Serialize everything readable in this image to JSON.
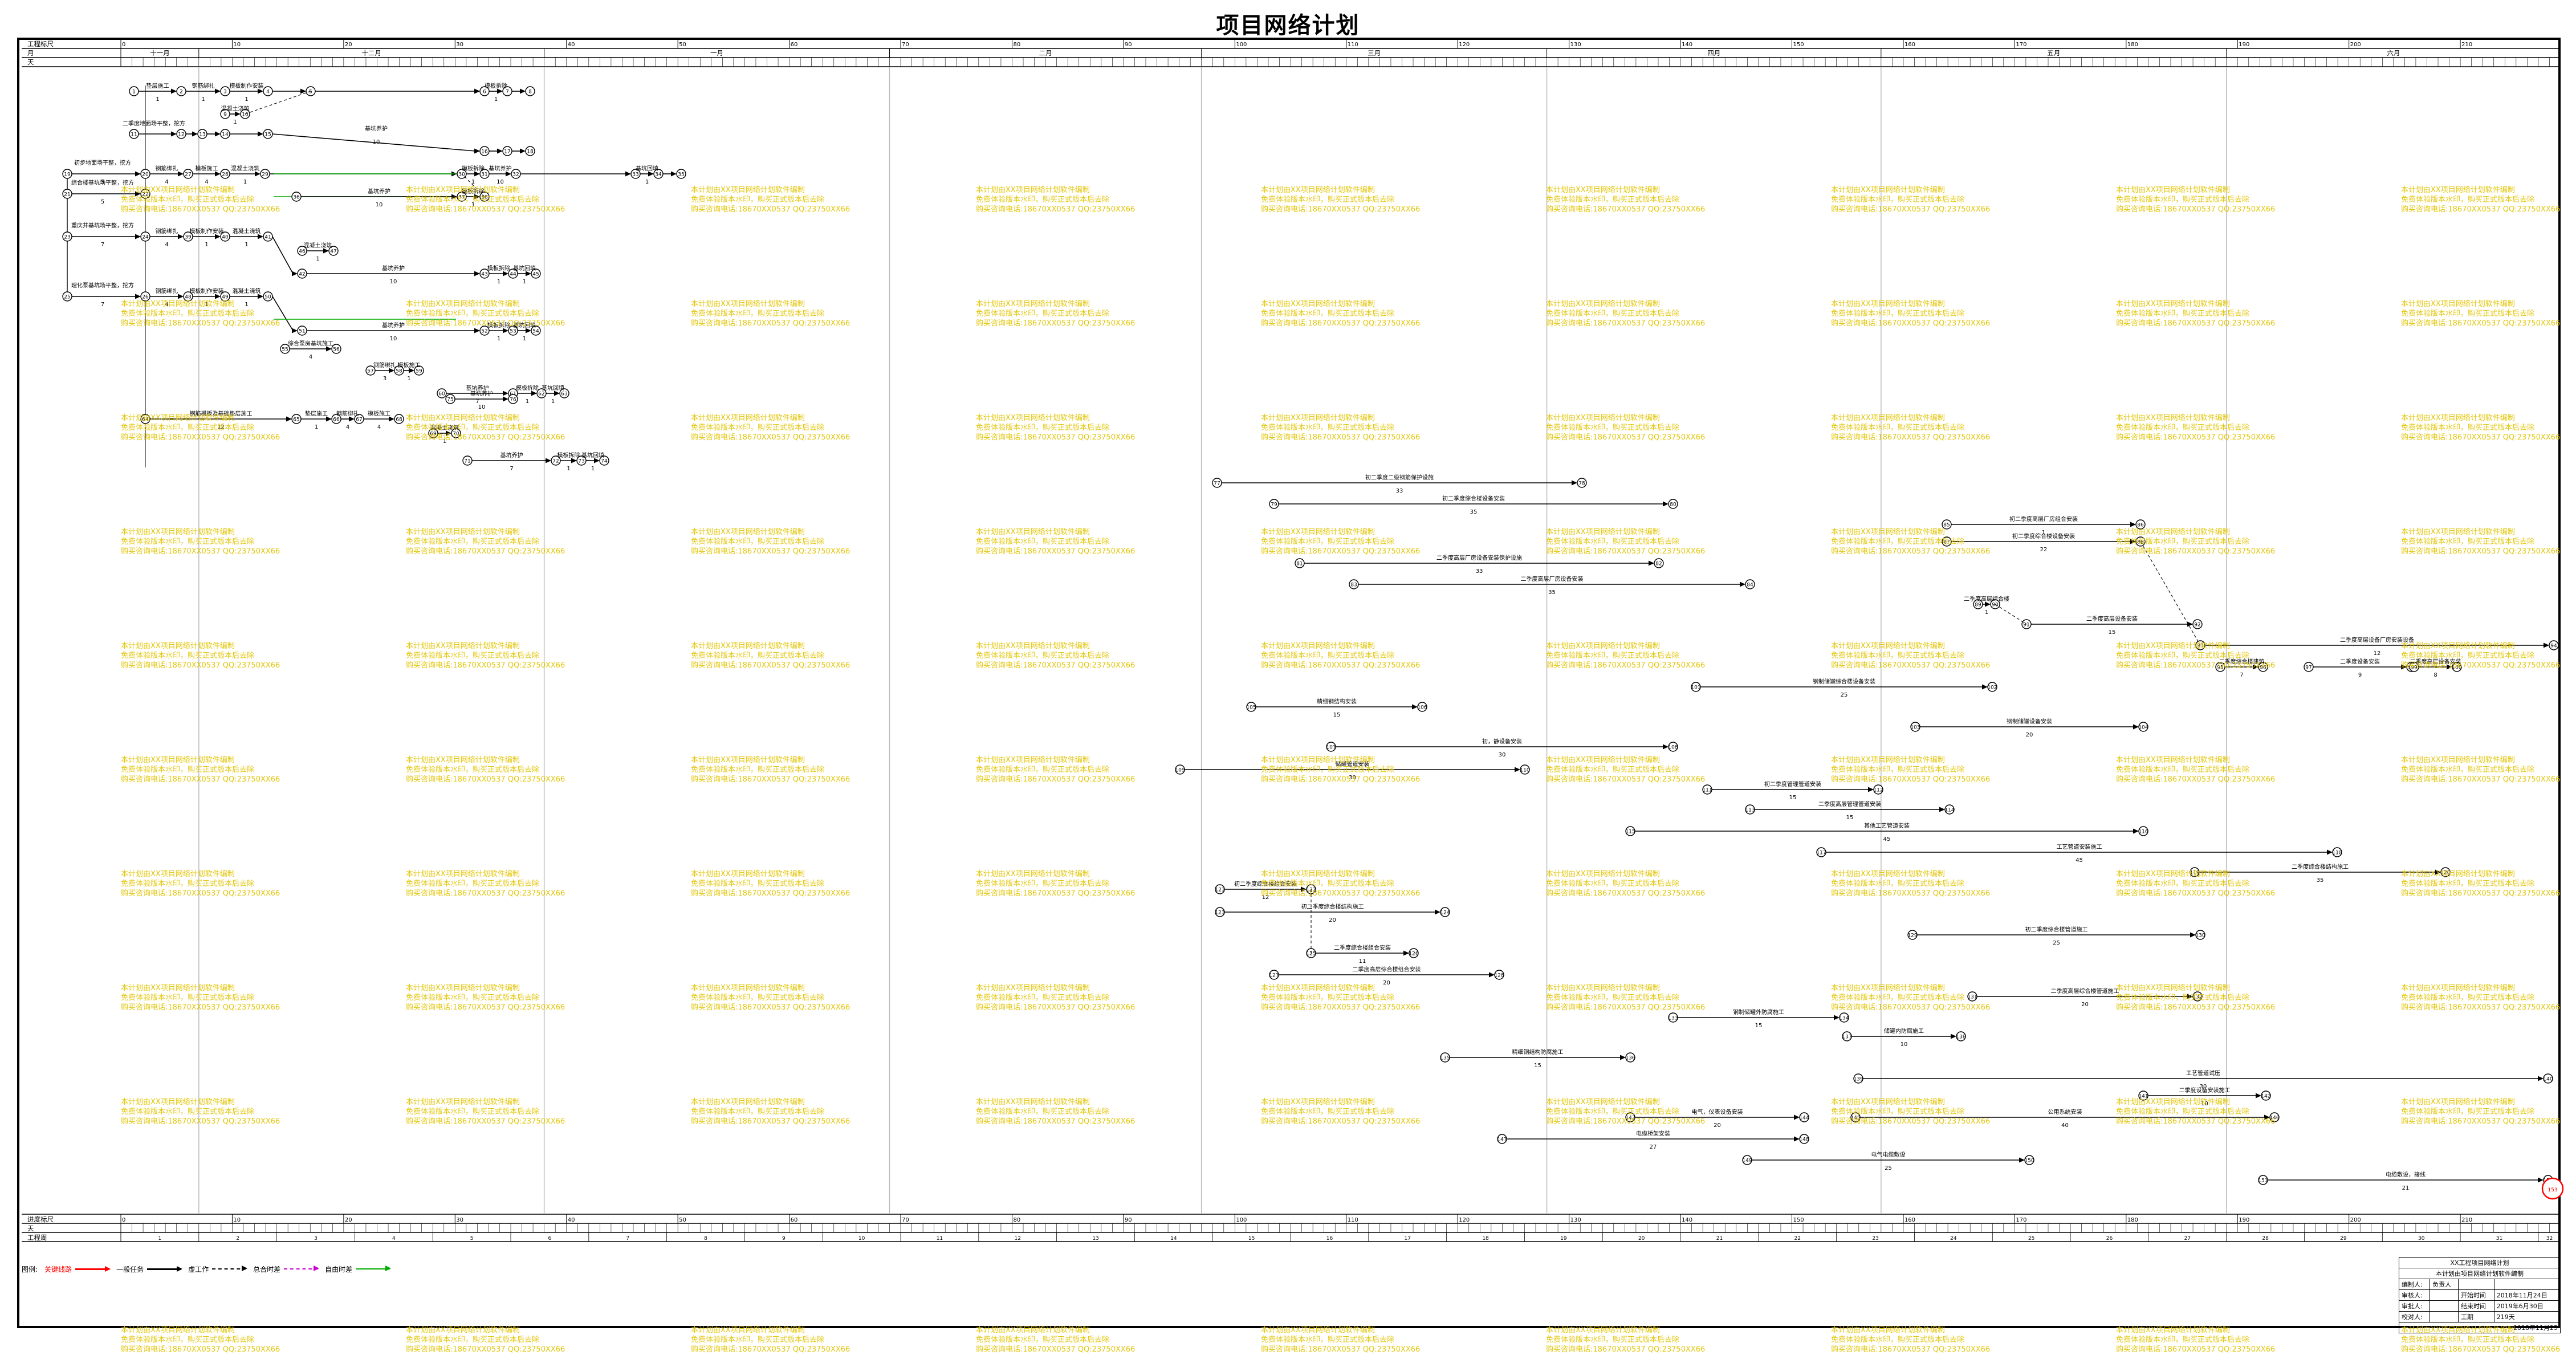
{
  "title": "项目网络计划",
  "header": {
    "row_labels": {
      "project_days": "工程标尺",
      "month": "月",
      "day": "天"
    },
    "months": [
      {
        "label": "十一月",
        "from": 0,
        "to": 7
      },
      {
        "label": "十二月",
        "from": 7,
        "to": 38
      },
      {
        "label": "一月",
        "from": 38,
        "to": 69
      },
      {
        "label": "二月",
        "from": 69,
        "to": 97
      },
      {
        "label": "三月",
        "from": 97,
        "to": 128
      },
      {
        "label": "四月",
        "from": 128,
        "to": 158
      },
      {
        "label": "五月",
        "from": 158,
        "to": 189
      },
      {
        "label": "六月",
        "from": 189,
        "to": 219
      }
    ]
  },
  "footer": {
    "row_labels": {
      "progress": "进度标尺",
      "day": "天",
      "week": "工程周"
    },
    "week_count": 32
  },
  "legend": {
    "label": "图例:",
    "items": [
      {
        "text": "关键线路",
        "color": "#ff0000"
      },
      {
        "text": "一般任务",
        "color": "#000000"
      },
      {
        "text": "虚工作",
        "color": "#000000"
      },
      {
        "text": "总合时差",
        "color": "#cc00cc"
      },
      {
        "text": "自由时差",
        "color": "#00aa00"
      }
    ]
  },
  "info_table": {
    "rows": [
      [
        "",
        "XX工程项目网络计划"
      ],
      [
        "",
        "本计划由项目网络计划软件编制"
      ],
      [
        "编制人:",
        "负责人",
        "",
        ""
      ],
      [
        "审核人:",
        "",
        "开始时间",
        "2018年11月24日"
      ],
      [
        "审批人:",
        "",
        "结束时间",
        "2019年6月30日"
      ],
      [
        "校对人:",
        "",
        "工期",
        "219天"
      ],
      [
        "",
        "",
        "",
        "2018年11月25"
      ]
    ]
  },
  "watermark": {
    "lines": [
      "本计划由XX项目网络计划软件编制",
      "免费体验版本水印，购买正式版本后去除",
      "购买咨询电话:18670XX0537 QQ:23750XX66"
    ]
  },
  "network": {
    "activities": [
      {
        "id": "a1",
        "label": "初二季度地面场平整，挖方",
        "dur": "5"
      },
      {
        "id": "a2",
        "label": "垫层施工",
        "dur": "1"
      },
      {
        "id": "a3",
        "label": "钢筋绑扎",
        "dur": "1"
      },
      {
        "id": "a4",
        "label": "模板制作安装",
        "dur": "1"
      },
      {
        "id": "a5",
        "label": "混凝土浇筑",
        "dur": "1"
      },
      {
        "id": "a6",
        "label": "基坑养护",
        "dur": "10"
      },
      {
        "id": "a7",
        "label": "模板拆除",
        "dur": "1"
      },
      {
        "id": "a8",
        "label": "基坑回填",
        "dur": "1"
      },
      {
        "id": "a9",
        "label": "二季度地面场平整，挖方",
        "dur": "5"
      },
      {
        "id": "a10",
        "label": "钢筋绑扎",
        "dur": "4"
      },
      {
        "id": "a11",
        "label": "模板制作安装",
        "dur": "4"
      },
      {
        "id": "a12",
        "label": "基坑养护",
        "dur": "10"
      },
      {
        "id": "a13",
        "label": "初步地面场平整，挖方",
        "dur": "5"
      },
      {
        "id": "a14",
        "label": "综合楼基坑场平整，挖方",
        "dur": "5"
      },
      {
        "id": "a15",
        "label": "钢筋绑扎",
        "dur": "4"
      },
      {
        "id": "a16",
        "label": "模板施工",
        "dur": "4"
      },
      {
        "id": "a17",
        "label": "混凝土浇筑",
        "dur": "1"
      },
      {
        "id": "a18",
        "label": "基坑养护",
        "dur": "10"
      },
      {
        "id": "a19",
        "label": "基坑养护",
        "dur": "10"
      },
      {
        "id": "a20",
        "label": "重庆井基坑场平整，挖方",
        "dur": "7"
      },
      {
        "id": "a21",
        "label": "钢筋绑扎",
        "dur": "4"
      },
      {
        "id": "a22",
        "label": "模板制作安装",
        "dur": "1"
      },
      {
        "id": "a23",
        "label": "基坑养护",
        "dur": "10"
      },
      {
        "id": "a24",
        "label": "理化泵基坑场平整，挖方",
        "dur": "7"
      },
      {
        "id": "a25",
        "label": "钢筋绑扎",
        "dur": "4"
      },
      {
        "id": "a26",
        "label": "模板制作安装",
        "dur": "1"
      },
      {
        "id": "a27",
        "label": "基坑养护",
        "dur": "10"
      },
      {
        "id": "a28",
        "label": "综合泵房基坑施工",
        "dur": "4"
      },
      {
        "id": "a29",
        "label": "钢筋绑扎",
        "dur": "3"
      },
      {
        "id": "a30",
        "label": "模板施工",
        "dur": "1"
      },
      {
        "id": "a31",
        "label": "基坑养护",
        "dur": "7"
      },
      {
        "id": "a32",
        "label": "钢筋绑扎",
        "dur": "4"
      },
      {
        "id": "a33",
        "label": "钢筋模板及基础垫层施工",
        "dur": "12"
      },
      {
        "id": "a34",
        "label": "基坑养护",
        "dur": "10"
      },
      {
        "id": "a35",
        "label": "基坑养护",
        "dur": "7"
      },
      {
        "id": "a36",
        "label": "初二季度二级钢筋保护设施",
        "dur": "33"
      },
      {
        "id": "a37",
        "label": "初二季度综合楼设备安装",
        "dur": "35"
      },
      {
        "id": "a38",
        "label": "二季度高层厂房设备安装保护设施",
        "dur": "33"
      },
      {
        "id": "a39",
        "label": "二季度高层厂房设备安装",
        "dur": "35"
      },
      {
        "id": "a40",
        "label": "初二季度高层厂房组合安装",
        "dur": "1"
      },
      {
        "id": "a41",
        "label": "初二季度综合楼设备安装",
        "dur": "22"
      },
      {
        "id": "a42",
        "label": "二季度高层综合楼",
        "dur": "1"
      },
      {
        "id": "a43",
        "label": "二季度高层设备安装",
        "dur": "15"
      },
      {
        "id": "a44",
        "label": "二季度高层设备厂房安装设备",
        "dur": "12"
      },
      {
        "id": "a45",
        "label": "二季度综合楼建筑",
        "dur": "7"
      },
      {
        "id": "a46",
        "label": "二季度设备安装",
        "dur": "9"
      },
      {
        "id": "a47",
        "label": "二季度高层设备安装",
        "dur": "8"
      },
      {
        "id": "a48",
        "label": "钢制储罐综合楼设备安装",
        "dur": "25"
      },
      {
        "id": "a49",
        "label": "钢制储罐设备安装",
        "dur": "20"
      },
      {
        "id": "a50",
        "label": "精细钢结构安装",
        "dur": "15"
      },
      {
        "id": "a51",
        "label": "初，静设备安装",
        "dur": "30"
      },
      {
        "id": "a52",
        "label": "储罐管道安装",
        "dur": "30"
      },
      {
        "id": "a53",
        "label": "初二季度管理管道安装",
        "dur": "15"
      },
      {
        "id": "a54",
        "label": "二季度高层管理管道安装",
        "dur": "15"
      },
      {
        "id": "a55",
        "label": "其他工艺管道安装",
        "dur": "45"
      },
      {
        "id": "a56",
        "label": "工艺管道安装施工",
        "dur": "45"
      },
      {
        "id": "a57",
        "label": "二季度综合楼结构施工",
        "dur": "35"
      },
      {
        "id": "a58",
        "label": "初二季度综合楼组合安装",
        "dur": "12"
      },
      {
        "id": "a59",
        "label": "初二季度综合楼结构施工",
        "dur": "20"
      },
      {
        "id": "a60",
        "label": "二季度综合楼组合安装",
        "dur": "11"
      },
      {
        "id": "a61",
        "label": "二季度高层综合楼组合安装",
        "dur": "20"
      },
      {
        "id": "a62",
        "label": "初二季度综合楼管道施工",
        "dur": "25"
      },
      {
        "id": "a63",
        "label": "二季度高层综合楼管道施工",
        "dur": "20"
      },
      {
        "id": "a64",
        "label": "钢制储罐外防腐施工",
        "dur": "15"
      },
      {
        "id": "a65",
        "label": "精细钢结构防腐施工",
        "dur": "15"
      },
      {
        "id": "a66",
        "label": "储罐内防腐施工",
        "dur": "10"
      },
      {
        "id": "a67",
        "label": "工艺管道试压",
        "dur": "30"
      },
      {
        "id": "a68",
        "label": "二季度设备安装施工",
        "dur": "10"
      },
      {
        "id": "a69",
        "label": "电气，仪表设备安装",
        "dur": "20"
      },
      {
        "id": "a70",
        "label": "公用系统安装",
        "dur": "40"
      },
      {
        "id": "a71",
        "label": "电缆桥架安装",
        "dur": "27"
      },
      {
        "id": "a72",
        "label": "电气电缆敷设",
        "dur": "25"
      },
      {
        "id": "a73",
        "label": "电缆敷设，接线",
        "dur": "21"
      }
    ]
  }
}
